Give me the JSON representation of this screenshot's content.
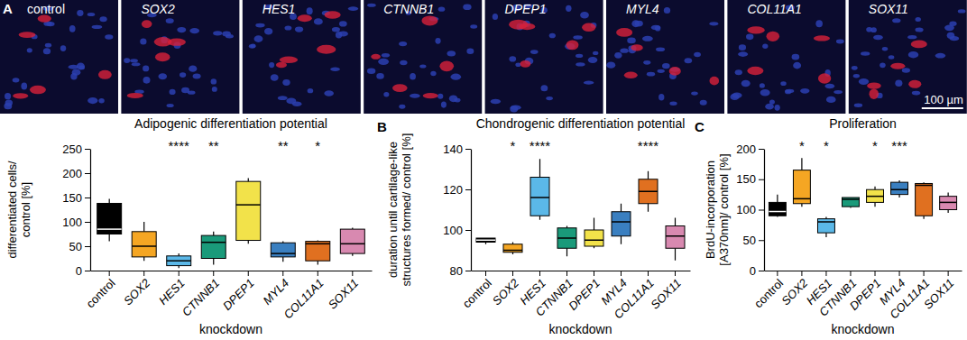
{
  "images": {
    "panel": "A",
    "labels": [
      "control",
      "SOX2",
      "HES1",
      "CTNNB1",
      "DPEP1",
      "MYL4",
      "COL11A1",
      "SOX11"
    ],
    "scale_bar": "100 µm"
  },
  "chart_data": [
    {
      "type": "box",
      "title": "Adipogenic differentiation potential",
      "ylabel": [
        "differentiated cells/",
        "control [%]"
      ],
      "xlabel": "knockdown",
      "categories": [
        "control",
        "SOX2",
        "HES1",
        "CTNNB1",
        "DPEP1",
        "MYL4",
        "COL11A1",
        "SOX11"
      ],
      "colors": [
        "#000000",
        "#f5a623",
        "#5bb8e8",
        "#1a9a7a",
        "#f2e24a",
        "#3a7fc0",
        "#e07020",
        "#d889b0"
      ],
      "boxes": [
        {
          "min": 60,
          "q1": 75,
          "median": 85,
          "q3": 138,
          "max": 147
        },
        {
          "min": 20,
          "q1": 28,
          "median": 50,
          "q3": 80,
          "max": 100
        },
        {
          "min": 5,
          "q1": 10,
          "median": 20,
          "q3": 30,
          "max": 35
        },
        {
          "min": 12,
          "q1": 25,
          "median": 58,
          "q3": 72,
          "max": 80
        },
        {
          "min": 55,
          "q1": 62,
          "median": 135,
          "q3": 183,
          "max": 190
        },
        {
          "min": 18,
          "q1": 28,
          "median": 35,
          "q3": 57,
          "max": 60
        },
        {
          "min": 12,
          "q1": 20,
          "median": 55,
          "q3": 60,
          "max": 62
        },
        {
          "min": 30,
          "q1": 35,
          "median": 55,
          "q3": 85,
          "max": 88
        }
      ],
      "significance": [
        null,
        null,
        "****",
        "**",
        null,
        "**",
        "*",
        null
      ],
      "ylim": [
        0,
        250
      ],
      "yticks": [
        0,
        50,
        100,
        150,
        200,
        250
      ]
    },
    {
      "type": "box",
      "panel": "B",
      "title": "Chondrogenic differentiation potential",
      "ylabel": [
        "duration until cartilage-like",
        "structures formed/ control [%]"
      ],
      "xlabel": "knockdown",
      "categories": [
        "control",
        "SOX2",
        "HES1",
        "CTNNB1",
        "DPEP1",
        "MYL4",
        "COL11A1",
        "SOX11"
      ],
      "colors": [
        "#000000",
        "#f5a623",
        "#5bb8e8",
        "#1a9a7a",
        "#f2e24a",
        "#3a7fc0",
        "#e07020",
        "#d889b0"
      ],
      "boxes": [
        {
          "min": 93,
          "q1": 94,
          "median": 95,
          "q3": 96,
          "max": 96
        },
        {
          "min": 88,
          "q1": 89,
          "median": 90,
          "q3": 93,
          "max": 94
        },
        {
          "min": 105,
          "q1": 107,
          "median": 116,
          "q3": 126,
          "max": 135
        },
        {
          "min": 87,
          "q1": 91,
          "median": 96,
          "q3": 101,
          "max": 102
        },
        {
          "min": 91,
          "q1": 92,
          "median": 95,
          "q3": 100,
          "max": 106
        },
        {
          "min": 93,
          "q1": 97,
          "median": 104,
          "q3": 109,
          "max": 113
        },
        {
          "min": 109,
          "q1": 113,
          "median": 119,
          "q3": 125,
          "max": 129
        },
        {
          "min": 85,
          "q1": 91,
          "median": 97,
          "q3": 102,
          "max": 106
        }
      ],
      "significance": [
        null,
        "*",
        "****",
        null,
        null,
        null,
        "****",
        null
      ],
      "ylim": [
        80,
        140
      ],
      "yticks": [
        80,
        100,
        120,
        140
      ]
    },
    {
      "type": "box",
      "panel": "C",
      "title": "Proliferation",
      "ylabel": [
        "BrdU-incorporation",
        "[A370nm]/ control [%]"
      ],
      "xlabel": "knockdown",
      "categories": [
        "control",
        "SOX2",
        "HES1",
        "CTNNB1",
        "DPEP1",
        "MYL4",
        "COL11A1",
        "SOX11"
      ],
      "colors": [
        "#000000",
        "#f5a623",
        "#5bb8e8",
        "#1a9a7a",
        "#f2e24a",
        "#3a7fc0",
        "#e07020",
        "#d889b0"
      ],
      "boxes": [
        {
          "min": 88,
          "q1": 90,
          "median": 97,
          "q3": 112,
          "max": 125
        },
        {
          "min": 105,
          "q1": 110,
          "median": 118,
          "q3": 165,
          "max": 185
        },
        {
          "min": 55,
          "q1": 62,
          "median": 80,
          "q3": 85,
          "max": 88
        },
        {
          "min": 103,
          "q1": 105,
          "median": 117,
          "q3": 120,
          "max": 120
        },
        {
          "min": 105,
          "q1": 112,
          "median": 122,
          "q3": 133,
          "max": 138
        },
        {
          "min": 120,
          "q1": 125,
          "median": 133,
          "q3": 145,
          "max": 148
        },
        {
          "min": 85,
          "q1": 90,
          "median": 140,
          "q3": 143,
          "max": 145
        },
        {
          "min": 95,
          "q1": 100,
          "median": 112,
          "q3": 122,
          "max": 128
        }
      ],
      "significance": [
        null,
        "*",
        "*",
        null,
        "*",
        "***",
        null,
        null
      ],
      "ylim": [
        0,
        200
      ],
      "yticks": [
        0,
        50,
        100,
        150,
        200
      ]
    }
  ]
}
